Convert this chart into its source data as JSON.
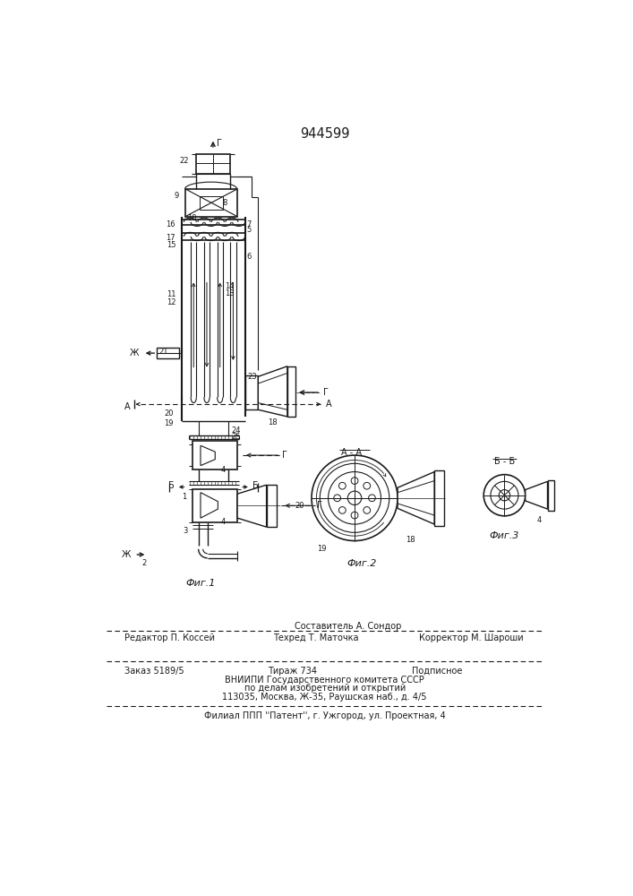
{
  "title": "944599",
  "bg_color": "#ffffff",
  "line_color": "#1a1a1a",
  "fig1_caption": "Фиг.1",
  "fig2_caption": "Фиг.2",
  "fig3_caption": "Фиг.3"
}
